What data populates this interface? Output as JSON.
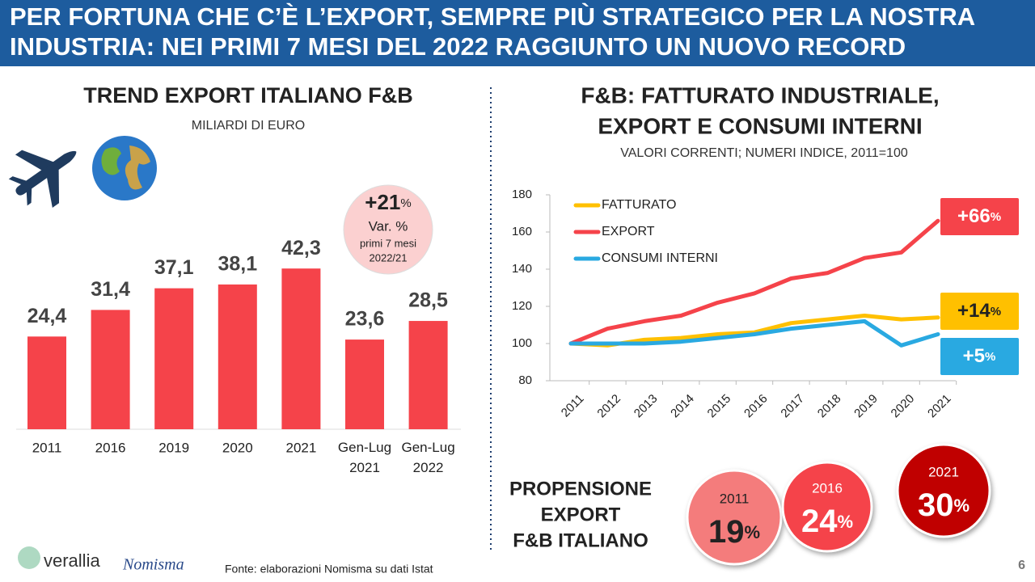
{
  "header": {
    "title": [
      "PER FORTUNA CHE C’È L’EXPORT, SEMPRE PIÙ STRATEGICO PER LA NOSTRA",
      "INDUSTRIA: NEI PRIMI 7 MESI DEL 2022 RAGGIUNTO UN NUOVO RECORD"
    ]
  },
  "chart_data": [
    {
      "type": "bar",
      "title": "TREND EXPORT ITALIANO F&B",
      "subtitle": "MILIARDI DI EURO",
      "categories": [
        "2011",
        "2016",
        "2019",
        "2020",
        "2021",
        "Gen-Lug 2021",
        "Gen-Lug 2022"
      ],
      "values": [
        24.4,
        31.4,
        37.1,
        38.1,
        42.3,
        23.6,
        28.5
      ],
      "value_labels": [
        "24,4",
        "31,4",
        "37,1",
        "38,1",
        "42,3",
        "23,6",
        "28,5"
      ],
      "color": "#f5434a",
      "badge": {
        "value": "+21",
        "unit": "%",
        "label": "Var. %",
        "note": [
          "primi 7 mesi",
          "2022/21"
        ]
      }
    },
    {
      "type": "line",
      "title": [
        "F&B: FATTURATO INDUSTRIALE,",
        "EXPORT E CONSUMI INTERNI"
      ],
      "subtitle": "VALORI CORRENTI; NUMERI INDICE, 2011=100",
      "x": [
        2011,
        2012,
        2013,
        2014,
        2015,
        2016,
        2017,
        2018,
        2019,
        2020,
        2021
      ],
      "xticks": [
        2011,
        2012,
        2013,
        2014,
        2015,
        2016,
        2017,
        2018,
        2019,
        2020,
        2021
      ],
      "ylim": [
        80,
        180
      ],
      "yticks": [
        80,
        100,
        120,
        140,
        160,
        180
      ],
      "series": [
        {
          "name": "FATTURATO",
          "color": "#ffc000",
          "values": [
            100,
            99,
            102,
            103,
            105,
            106,
            111,
            113,
            115,
            113,
            114
          ],
          "end_label": "+14",
          "unit": "%"
        },
        {
          "name": "EXPORT",
          "color": "#f5434a",
          "values": [
            100,
            108,
            112,
            115,
            122,
            127,
            135,
            138,
            146,
            149,
            166
          ],
          "end_label": "+66",
          "unit": "%"
        },
        {
          "name": "CONSUMI INTERNI",
          "color": "#29a9e1",
          "values": [
            100,
            100,
            100,
            101,
            103,
            105,
            108,
            110,
            112,
            99,
            105
          ],
          "end_label": "+5",
          "unit": "%"
        }
      ]
    },
    {
      "type": "circles",
      "title": [
        "PROPENSIONE",
        "EXPORT",
        "F&B ITALIANO"
      ],
      "categories": [
        "2011",
        "2016",
        "2021"
      ],
      "values": [
        19,
        24,
        30
      ],
      "unit": "%",
      "colors": [
        "#f47c7c",
        "#f5434a",
        "#c00000"
      ]
    }
  ],
  "footer": {
    "source": "Fonte: elaborazioni Nomisma su dati Istat",
    "logo1": "verallia",
    "logo2": "Nomisma",
    "page": "6"
  }
}
